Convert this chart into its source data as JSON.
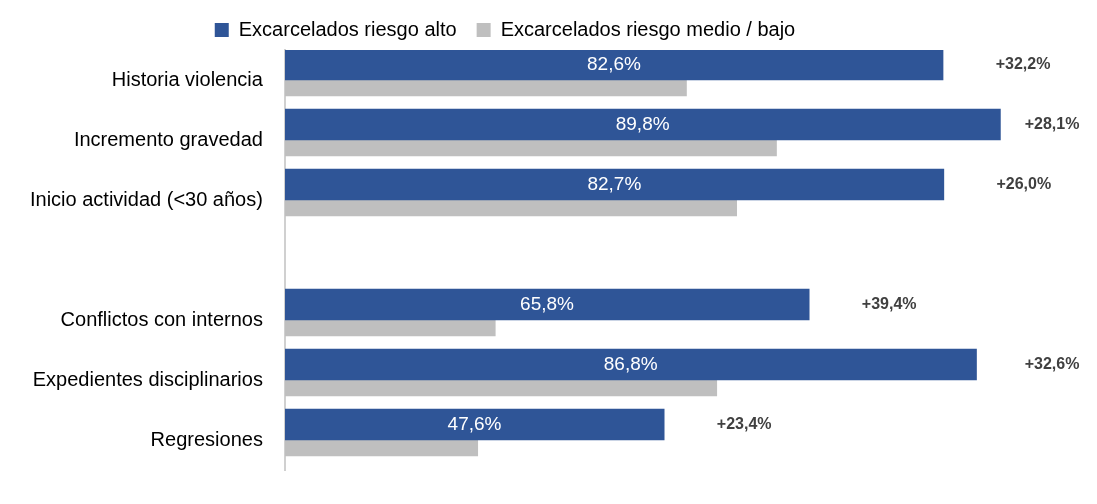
{
  "chart_data": {
    "type": "bar",
    "orientation": "horizontal",
    "categories": [
      "Historia violencia",
      "Incremento gravedad",
      "Inicio actividad (<30 años)",
      null,
      "Conflictos con internos",
      "Expedientes disciplinarios",
      "Regresiones"
    ],
    "series": [
      {
        "name": "Excarcelados riesgo alto",
        "color": "#2f5597",
        "values": [
          82.6,
          89.8,
          82.7,
          null,
          65.8,
          86.8,
          47.6
        ],
        "value_labels": [
          "82,6%",
          "89,8%",
          "82,7%",
          null,
          "65,8%",
          "86,8%",
          "47,6%"
        ]
      },
      {
        "name": "Excarcelados riesgo medio / bajo",
        "color": "#bfbfbf",
        "values": [
          50.4,
          61.7,
          56.7,
          null,
          26.4,
          54.2,
          24.2
        ]
      }
    ],
    "tick_labels": "y",
    "grid": false,
    "legend": "top",
    "annotations": [
      "+32,2%",
      "+28,1%",
      "+26,0%",
      "+39,4%",
      "+32,6%",
      "+23,4%"
    ]
  }
}
